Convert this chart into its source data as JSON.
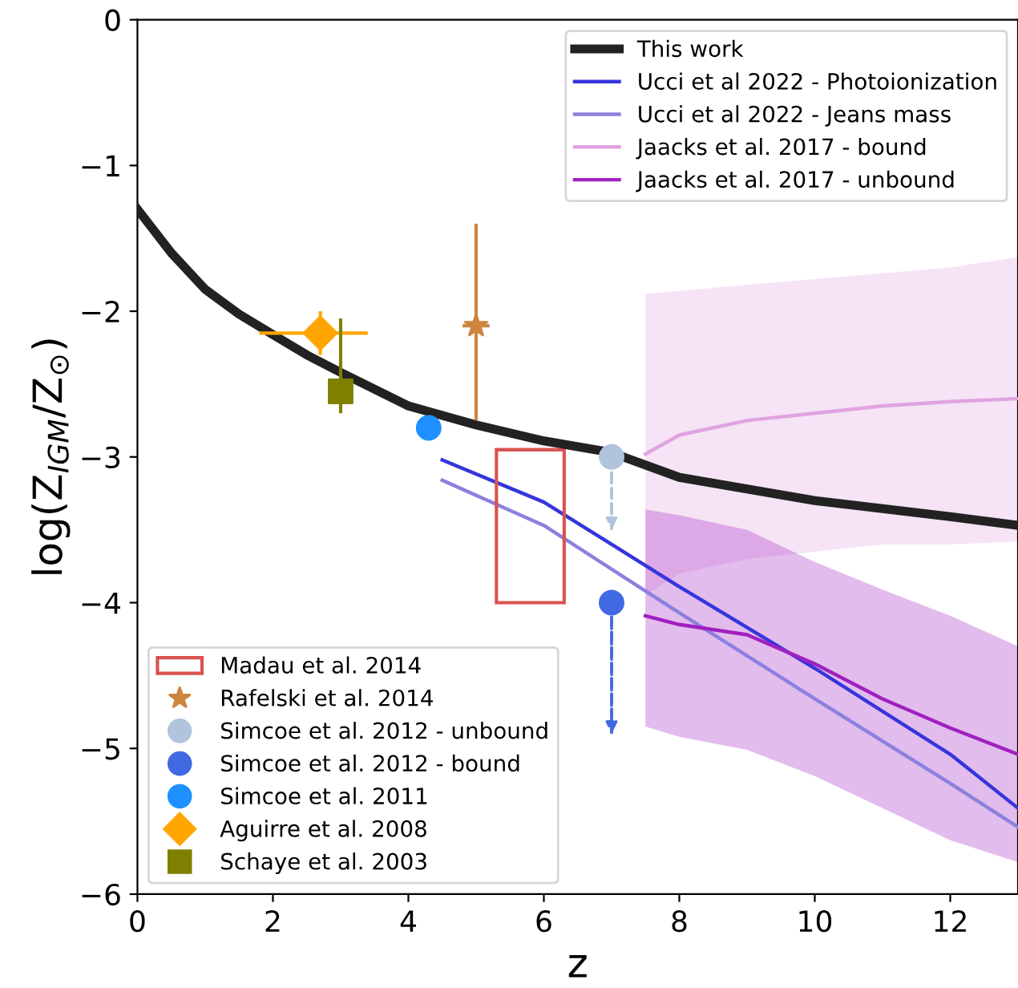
{
  "chart_data": {
    "type": "line",
    "xlabel": "z",
    "ylabel": "log(Z$_{IGM}$/Z$_{⊙}$)",
    "xlim": [
      0,
      13
    ],
    "ylim": [
      -6,
      0
    ],
    "xticks": [
      0,
      2,
      4,
      6,
      8,
      10,
      12
    ],
    "yticks": [
      {
        "value": -6,
        "label": "−6"
      },
      {
        "value": -5,
        "label": "−5"
      },
      {
        "value": -4,
        "label": "−4"
      },
      {
        "value": -3,
        "label": "−3"
      },
      {
        "value": -2,
        "label": "−2"
      },
      {
        "value": -1,
        "label": "−1"
      },
      0
    ],
    "legend": "top right",
    "grid": false,
    "series": [
      {
        "name": "This work",
        "color": "#222222",
        "x": [
          0,
          0.5,
          1,
          1.5,
          2,
          2.5,
          3,
          4,
          5,
          6,
          7,
          8,
          10,
          12,
          13
        ],
        "values": [
          -1.3,
          -1.6,
          -1.85,
          -2.02,
          -2.16,
          -2.3,
          -2.42,
          -2.65,
          -2.78,
          -2.89,
          -2.97,
          -3.14,
          -3.3,
          -3.41,
          -3.47
        ]
      },
      {
        "name": "Ucci et al 2022 - Photoionization",
        "color": "#3535dd",
        "x": [
          4.5,
          6,
          8,
          10,
          12,
          13
        ],
        "values": [
          -3.02,
          -3.31,
          -3.89,
          -4.45,
          -5.04,
          -5.41
        ]
      },
      {
        "name": "Ucci et al 2022 - Jeans mass",
        "color": "#8c80e0",
        "x": [
          4.5,
          6,
          8,
          10,
          12,
          13
        ],
        "values": [
          -3.16,
          -3.47,
          -4.07,
          -4.66,
          -5.24,
          -5.54
        ]
      },
      {
        "name": "Jaacks et al. 2017 - bound",
        "color": "#e0a3e0",
        "x": [
          7.5,
          8,
          9,
          10,
          11,
          12,
          13
        ],
        "values": [
          -2.98,
          -2.85,
          -2.75,
          -2.7,
          -2.65,
          -2.62,
          -2.6
        ],
        "lower": [
          -3.95,
          -3.8,
          -3.7,
          -3.65,
          -3.6,
          -3.6,
          -3.58
        ],
        "upper": [
          -1.88,
          -1.86,
          -1.82,
          -1.78,
          -1.74,
          -1.7,
          -1.63
        ]
      },
      {
        "name": "Jaacks et al. 2017 - unbound",
        "color": "#a020c0",
        "x": [
          7.5,
          8,
          9,
          10,
          11,
          12,
          13
        ],
        "values": [
          -4.09,
          -4.15,
          -4.22,
          -4.42,
          -4.66,
          -4.86,
          -5.04
        ],
        "lower": [
          -4.85,
          -4.92,
          -5.01,
          -5.19,
          -5.41,
          -5.63,
          -5.78
        ],
        "upper": [
          -3.36,
          -3.4,
          -3.5,
          -3.72,
          -3.91,
          -4.09,
          -4.3
        ]
      },
      {
        "name": "Madau et al. 2014",
        "type": "bar",
        "color": "#d9534f",
        "x": [
          5.8
        ],
        "base": [
          -4.0
        ],
        "values": [
          1.05
        ],
        "xerrors": [
          [
            5.3,
            6.3
          ]
        ]
      },
      {
        "name": "Rafelski et al. 2014",
        "type": "scatter",
        "marker": "star",
        "color": "#cd853f",
        "x": [
          5.0
        ],
        "values": [
          -2.1
        ],
        "errors": [
          [
            -2.75,
            -1.4
          ]
        ],
        "xerrors": [
          0.2
        ]
      },
      {
        "name": "Simcoe et al. 2012 - unbound",
        "type": "scatter",
        "marker": "circle",
        "color": "#b0c4de",
        "x": [
          7.0
        ],
        "values": [
          -3.0
        ],
        "errors": [
          [
            -3.5,
            -3.0
          ]
        ]
      },
      {
        "name": "Simcoe et al. 2012 - bound",
        "type": "scatter",
        "marker": "circle",
        "color": "#4169e1",
        "x": [
          7.0
        ],
        "values": [
          -4.0
        ],
        "errors": [
          [
            -4.9,
            -4.0
          ]
        ]
      },
      {
        "name": "Simcoe et al. 2011",
        "type": "scatter",
        "marker": "circle",
        "color": "#1e90ff",
        "x": [
          4.3
        ],
        "values": [
          -2.8
        ],
        "xerrors": [
          0.15
        ]
      },
      {
        "name": "Aguirre et al. 2008",
        "type": "scatter",
        "marker": "diamond",
        "color": "#ffa500",
        "x": [
          2.7
        ],
        "values": [
          -2.15
        ],
        "errors": [
          0.15
        ],
        "xerrors": [
          [
            1.8,
            3.4
          ]
        ]
      },
      {
        "name": "Schaye et al. 2003",
        "type": "scatter",
        "marker": "square",
        "color": "#808000",
        "x": [
          3.0
        ],
        "values": [
          -2.55
        ],
        "errors": [
          [
            -2.7,
            -2.05
          ]
        ]
      }
    ]
  }
}
